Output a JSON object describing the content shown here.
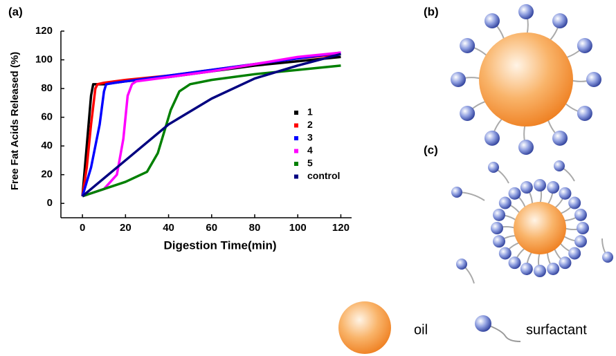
{
  "panels": {
    "a": "(a)",
    "b": "(b)",
    "c": "(c)"
  },
  "chart_data": {
    "type": "line",
    "x_label": "Digestion Time(min)",
    "y_label": "Free Fat Acids Released (%)",
    "xlim": [
      -10,
      125
    ],
    "ylim": [
      -10,
      120
    ],
    "xticks": [
      0,
      20,
      40,
      60,
      80,
      100,
      120
    ],
    "yticks": [
      0,
      20,
      40,
      60,
      80,
      100,
      120
    ],
    "legend": "right",
    "series": [
      {
        "name": "1",
        "color": "#000000",
        "x": [
          0,
          2,
          4,
          5,
          6,
          10,
          20,
          40,
          60,
          80,
          100,
          120
        ],
        "values": [
          5,
          40,
          75,
          83,
          83,
          83,
          85,
          88,
          92,
          96,
          99,
          102
        ]
      },
      {
        "name": "2",
        "color": "#ff0000",
        "x": [
          0,
          2,
          4,
          6,
          7,
          10,
          20,
          40,
          60,
          80,
          100,
          120
        ],
        "values": [
          5,
          25,
          55,
          80,
          83,
          84,
          86,
          89,
          93,
          97,
          101,
          104
        ]
      },
      {
        "name": "3",
        "color": "#0000ff",
        "x": [
          0,
          4,
          8,
          10,
          11,
          15,
          20,
          40,
          60,
          80,
          100,
          120
        ],
        "values": [
          5,
          25,
          55,
          78,
          83,
          84,
          85,
          89,
          93,
          97,
          101,
          105
        ]
      },
      {
        "name": "4",
        "color": "#ff00ff",
        "x": [
          0,
          10,
          16,
          19,
          21,
          23,
          25,
          30,
          40,
          60,
          80,
          100,
          120
        ],
        "values": [
          5,
          10,
          20,
          45,
          75,
          83,
          85,
          86,
          88,
          92,
          97,
          102,
          105
        ]
      },
      {
        "name": "5",
        "color": "#008000",
        "x": [
          0,
          10,
          20,
          30,
          35,
          38,
          41,
          45,
          50,
          60,
          80,
          100,
          120
        ],
        "values": [
          5,
          10,
          15,
          22,
          35,
          50,
          65,
          78,
          83,
          86,
          90,
          93,
          96
        ]
      },
      {
        "name": "control",
        "color": "#000080",
        "x": [
          0,
          20,
          40,
          60,
          80,
          100,
          110,
          120
        ],
        "values": [
          5,
          30,
          55,
          73,
          87,
          96,
          100,
          104
        ]
      }
    ]
  },
  "key": {
    "oil": "oil",
    "surfactant": "surfactant"
  }
}
